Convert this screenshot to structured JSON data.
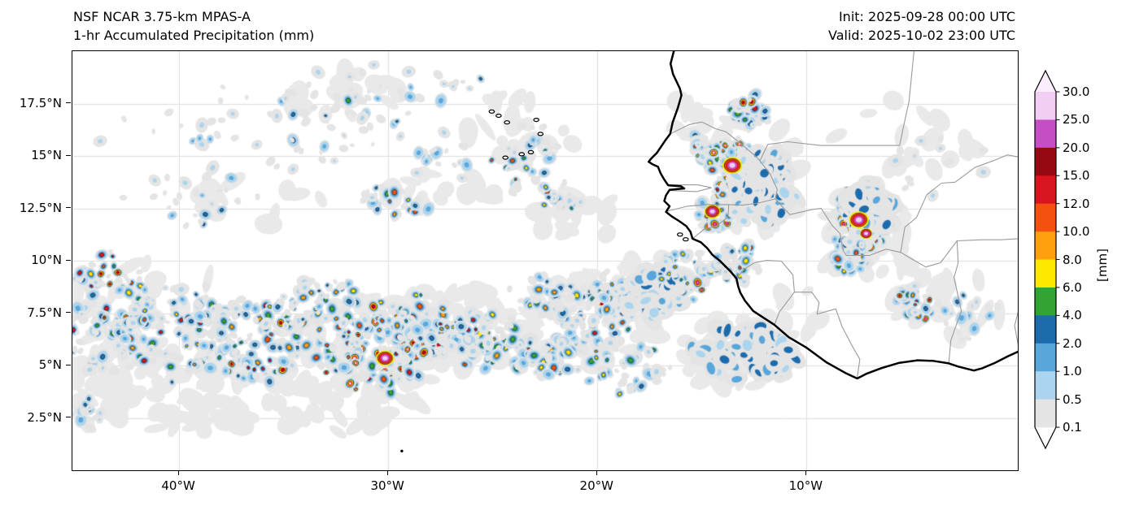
{
  "header": {
    "title_line1": "NSF NCAR 3.75-km MPAS-A",
    "title_line2": "1-hr Accumulated Precipitation (mm)",
    "init_label": "Init: 2025-09-28 00:00 UTC",
    "valid_label": "Valid: 2025-10-02 23:00 UTC"
  },
  "chart_data": {
    "type": "heatmap",
    "subtype": "precipitation-map",
    "title": "1-hr Accumulated Precipitation (mm)",
    "model": "NSF NCAR 3.75-km MPAS-A",
    "lon_range": [
      -45.1,
      0.1
    ],
    "lat_range": [
      0,
      20
    ],
    "grid": true,
    "grid_color": "#dedede",
    "coast_color": "#000000",
    "border_color": "#9a9a9a",
    "wash_color": "#e9e9e9",
    "seed": 20251002,
    "x_ticks": [
      {
        "lon": -40,
        "label": "40°W"
      },
      {
        "lon": -30,
        "label": "30°W"
      },
      {
        "lon": -20,
        "label": "20°W"
      },
      {
        "lon": -10,
        "label": "10°W"
      }
    ],
    "y_ticks": [
      {
        "lat": 17.5,
        "label": "17.5°N"
      },
      {
        "lat": 15,
        "label": "15°N"
      },
      {
        "lat": 12.5,
        "label": "12.5°N"
      },
      {
        "lat": 10,
        "label": "10°N"
      },
      {
        "lat": 7.5,
        "label": "7.5°N"
      },
      {
        "lat": 5,
        "label": "5°N"
      },
      {
        "lat": 2.5,
        "label": "2.5°N"
      }
    ],
    "colorbar": {
      "units_label": "[mm]",
      "orientation": "vertical",
      "position": "right",
      "levels": [
        0.1,
        0.5,
        1.0,
        2.0,
        4.0,
        6.0,
        8.0,
        10.0,
        12.0,
        15.0,
        20.0,
        25.0,
        30.0
      ],
      "tick_labels": [
        "30.0",
        "25.0",
        "20.0",
        "15.0",
        "12.0",
        "10.0",
        "8.0",
        "6.0",
        "4.0",
        "2.0",
        "1.0",
        "0.5",
        "0.1"
      ],
      "band_colors": [
        "#e4e4e4",
        "#abd4ee",
        "#58a6da",
        "#1c6bad",
        "#33a433",
        "#ffe800",
        "#ffa10e",
        "#f4500e",
        "#d8141e",
        "#960812",
        "#c44fc4",
        "#f2cdf4"
      ],
      "under_color": "#ffffff",
      "over_color": "#fbeefc"
    },
    "cell_format": [
      "lon",
      "lat",
      "rx_deg",
      "ry_deg",
      "count",
      "max_mm",
      "bias",
      "style"
    ],
    "precip_cells": [
      [
        -36.5,
        16.2,
        6.5,
        2.6,
        55,
        2.0,
        2.5,
        ""
      ],
      [
        -31.5,
        17.6,
        3.5,
        1.6,
        30,
        4.0,
        2.2,
        ""
      ],
      [
        -39.0,
        12.9,
        3.2,
        1.4,
        25,
        2.0,
        2.5,
        ""
      ],
      [
        -27.0,
        15.0,
        1.6,
        1.2,
        18,
        1.0,
        2.0,
        ""
      ],
      [
        -23.3,
        14.6,
        1.5,
        1.7,
        42,
        10.0,
        2.0,
        ""
      ],
      [
        -21.6,
        13.1,
        1.0,
        0.8,
        20,
        8.0,
        2.0,
        ""
      ],
      [
        -29.8,
        12.8,
        1.7,
        0.8,
        30,
        12.0,
        2.2,
        ""
      ],
      [
        -43.6,
        7.4,
        2.2,
        2.9,
        130,
        15.0,
        2.4,
        ""
      ],
      [
        -40.3,
        6.6,
        2.6,
        2.1,
        115,
        12.0,
        2.4,
        ""
      ],
      [
        -36.4,
        6.3,
        2.6,
        1.8,
        125,
        15.0,
        2.3,
        ""
      ],
      [
        -33.3,
        8.1,
        2.0,
        1.1,
        55,
        8.0,
        2.3,
        ""
      ],
      [
        -30.6,
        5.9,
        2.7,
        1.9,
        200,
        30.0,
        2.6,
        ""
      ],
      [
        -28.2,
        7.3,
        1.6,
        1.1,
        55,
        10.0,
        2.3,
        ""
      ],
      [
        -25.6,
        6.3,
        2.2,
        1.3,
        85,
        12.0,
        2.3,
        ""
      ],
      [
        -22.3,
        5.4,
        1.6,
        1.0,
        45,
        12.0,
        2.3,
        ""
      ],
      [
        -20.3,
        7.2,
        2.3,
        1.7,
        95,
        15.0,
        2.4,
        ""
      ],
      [
        -19.3,
        8.6,
        0.9,
        0.9,
        30,
        12.0,
        2.2,
        ""
      ],
      [
        -17.3,
        8.4,
        1.4,
        1.1,
        55,
        8.0,
        1.8,
        "blue"
      ],
      [
        -15.7,
        9.4,
        1.3,
        1.1,
        60,
        20.0,
        2.2,
        ""
      ],
      [
        -15.2,
        15.3,
        0.7,
        0.6,
        18,
        10.0,
        2.0,
        ""
      ],
      [
        -12.7,
        17.1,
        1.0,
        0.8,
        38,
        20.0,
        2.0,
        ""
      ],
      [
        -13.5,
        14.6,
        1.1,
        1.3,
        75,
        30.0,
        2.3,
        ""
      ],
      [
        -12.1,
        13.5,
        1.4,
        1.7,
        80,
        4.0,
        1.6,
        "blue"
      ],
      [
        -14.45,
        12.35,
        0.9,
        1.0,
        48,
        25.0,
        2.2,
        ""
      ],
      [
        -13.3,
        9.9,
        1.1,
        0.9,
        55,
        20.0,
        2.2,
        ""
      ],
      [
        -7.35,
        11.9,
        1.4,
        1.6,
        130,
        30.0,
        2.4,
        ""
      ],
      [
        -6.9,
        12.5,
        1.2,
        1.1,
        55,
        4.0,
        1.6,
        "blue"
      ],
      [
        -7.9,
        10.2,
        1.0,
        0.8,
        40,
        15.0,
        2.2,
        ""
      ],
      [
        -5.0,
        8.0,
        0.95,
        0.9,
        48,
        20.0,
        2.3,
        ""
      ],
      [
        -12.8,
        5.6,
        2.5,
        1.2,
        70,
        8.0,
        2.0,
        "blue"
      ],
      [
        -2.6,
        7.6,
        1.5,
        1.4,
        18,
        2.0,
        2.2,
        ""
      ],
      [
        -4.0,
        14.5,
        2.6,
        1.6,
        14,
        0.5,
        2.0,
        ""
      ],
      [
        -28.0,
        18.6,
        2.2,
        1.0,
        14,
        2.0,
        2.2,
        ""
      ],
      [
        -18.5,
        5.0,
        2.0,
        1.2,
        40,
        6.0,
        2.2,
        ""
      ],
      [
        -22.5,
        8.3,
        1.6,
        1.0,
        30,
        8.0,
        2.4,
        ""
      ],
      [
        -44.3,
        2.6,
        1.2,
        0.8,
        18,
        2.0,
        2.2,
        ""
      ]
    ],
    "core_format": [
      "lon",
      "lat",
      "radius_px"
    ],
    "storm_cores": [
      [
        -30.15,
        5.35,
        5.0
      ],
      [
        -13.55,
        14.55,
        5.5
      ],
      [
        -14.5,
        12.35,
        4.5
      ],
      [
        -7.5,
        11.95,
        5.5
      ],
      [
        -7.15,
        11.3,
        3.5
      ]
    ],
    "wash_format": [
      "lon",
      "lat",
      "rx_deg",
      "ry_deg",
      "count"
    ],
    "gray_washes": [
      [
        -36.5,
        3.6,
        8.5,
        2.1,
        90
      ],
      [
        -30.5,
        5.6,
        4.6,
        2.6,
        60
      ],
      [
        -41.5,
        7.5,
        3.8,
        2.6,
        45
      ],
      [
        -44.0,
        4.2,
        2.6,
        2.2,
        30
      ],
      [
        -26.3,
        7.0,
        3.4,
        2.0,
        40
      ],
      [
        -20.2,
        7.2,
        3.2,
        2.2,
        40
      ],
      [
        -13.4,
        5.6,
        3.0,
        1.7,
        30
      ],
      [
        -27.5,
        13.2,
        2.6,
        1.2,
        18
      ],
      [
        -23.6,
        16.2,
        2.6,
        1.9,
        22
      ],
      [
        -31.8,
        17.6,
        3.0,
        1.4,
        16
      ],
      [
        -12.6,
        14.2,
        2.3,
        2.9,
        30
      ],
      [
        -7.2,
        11.6,
        2.4,
        2.4,
        28
      ],
      [
        -5.2,
        16.0,
        3.4,
        1.8,
        18
      ],
      [
        -2.6,
        7.7,
        1.9,
        1.7,
        14
      ],
      [
        -36.2,
        12.9,
        3.0,
        1.4,
        12
      ],
      [
        -17.4,
        8.9,
        1.7,
        1.3,
        16
      ],
      [
        -15.9,
        16.9,
        1.4,
        1.0,
        10
      ],
      [
        -21.0,
        12.0,
        2.2,
        1.2,
        12
      ],
      [
        -4.7,
        8.6,
        1.6,
        1.6,
        12
      ],
      [
        -10.6,
        7.5,
        1.6,
        1.2,
        10
      ]
    ]
  },
  "map": {
    "coastline": [
      [
        -16.32,
        20.1
      ],
      [
        -16.5,
        19.4
      ],
      [
        -16.38,
        18.9
      ],
      [
        -16.05,
        18.2
      ],
      [
        -15.98,
        17.9
      ],
      [
        -16.15,
        17.3
      ],
      [
        -16.4,
        16.6
      ],
      [
        -16.52,
        16.05
      ],
      [
        -16.78,
        15.7
      ],
      [
        -17.15,
        15.15
      ],
      [
        -17.45,
        14.85
      ],
      [
        -17.55,
        14.72
      ],
      [
        -17.36,
        14.6
      ],
      [
        -17.1,
        14.48
      ],
      [
        -16.98,
        14.18
      ],
      [
        -16.82,
        13.9
      ],
      [
        -16.62,
        13.6
      ],
      [
        -16.0,
        13.55
      ],
      [
        -15.85,
        13.45
      ],
      [
        -16.55,
        13.38
      ],
      [
        -16.72,
        13.12
      ],
      [
        -16.8,
        12.85
      ],
      [
        -16.55,
        12.6
      ],
      [
        -16.72,
        12.33
      ],
      [
        -16.45,
        12.12
      ],
      [
        -16.1,
        11.9
      ],
      [
        -15.75,
        11.65
      ],
      [
        -15.55,
        11.38
      ],
      [
        -15.45,
        11.05
      ],
      [
        -15.05,
        10.88
      ],
      [
        -14.75,
        10.6
      ],
      [
        -14.5,
        10.28
      ],
      [
        -14.15,
        10.0
      ],
      [
        -13.8,
        9.65
      ],
      [
        -13.6,
        9.45
      ],
      [
        -13.35,
        9.15
      ],
      [
        -13.27,
        8.78
      ],
      [
        -13.17,
        8.48
      ],
      [
        -12.95,
        8.1
      ],
      [
        -12.55,
        7.6
      ],
      [
        -11.55,
        6.95
      ],
      [
        -10.85,
        6.35
      ],
      [
        -10.0,
        5.85
      ],
      [
        -9.05,
        5.15
      ],
      [
        -8.1,
        4.62
      ],
      [
        -7.58,
        4.38
      ],
      [
        -7.1,
        4.62
      ],
      [
        -6.4,
        4.88
      ],
      [
        -5.6,
        5.12
      ],
      [
        -4.7,
        5.25
      ],
      [
        -3.95,
        5.22
      ],
      [
        -3.2,
        5.1
      ],
      [
        -2.75,
        4.95
      ],
      [
        -2.0,
        4.76
      ],
      [
        -1.62,
        4.86
      ],
      [
        -1.0,
        5.12
      ],
      [
        -0.35,
        5.45
      ],
      [
        0.15,
        5.68
      ]
    ],
    "borders": [
      [
        [
          -16.52,
          16.05
        ],
        [
          -15.6,
          16.5
        ],
        [
          -15.0,
          16.62
        ],
        [
          -14.35,
          16.3
        ],
        [
          -13.85,
          16.15
        ],
        [
          -13.1,
          15.55
        ],
        [
          -12.45,
          15.0
        ],
        [
          -12.23,
          14.77
        ]
      ],
      [
        [
          -12.23,
          14.77
        ],
        [
          -11.75,
          14.15
        ],
        [
          -11.4,
          13.4
        ],
        [
          -11.5,
          12.95
        ]
      ],
      [
        [
          -11.5,
          12.95
        ],
        [
          -12.3,
          12.75
        ],
        [
          -13.05,
          12.65
        ],
        [
          -13.72,
          12.68
        ],
        [
          -14.8,
          12.68
        ],
        [
          -15.7,
          12.6
        ],
        [
          -16.72,
          12.35
        ]
      ],
      [
        [
          -13.72,
          12.68
        ],
        [
          -13.75,
          12.1
        ],
        [
          -14.3,
          11.65
        ],
        [
          -14.9,
          11.5
        ],
        [
          -15.45,
          11.05
        ]
      ],
      [
        [
          -12.23,
          14.77
        ],
        [
          -11.85,
          15.55
        ],
        [
          -10.9,
          15.68
        ],
        [
          -9.35,
          15.5
        ],
        [
          -5.55,
          15.5
        ],
        [
          -5.38,
          16.32
        ],
        [
          -5.1,
          17.6
        ],
        [
          -4.85,
          20.1
        ]
      ],
      [
        [
          -13.35,
          9.15
        ],
        [
          -12.95,
          9.62
        ],
        [
          -12.5,
          9.9
        ],
        [
          -11.9,
          10.02
        ],
        [
          -11.2,
          9.98
        ],
        [
          -10.65,
          9.32
        ],
        [
          -10.58,
          8.5
        ],
        [
          -11.3,
          7.55
        ],
        [
          -11.52,
          6.98
        ]
      ],
      [
        [
          -10.58,
          8.5
        ],
        [
          -9.75,
          8.5
        ],
        [
          -9.4,
          8.0
        ],
        [
          -9.5,
          7.45
        ],
        [
          -8.6,
          7.7
        ],
        [
          -8.3,
          6.85
        ],
        [
          -7.8,
          5.9
        ],
        [
          -7.45,
          5.3
        ],
        [
          -7.58,
          4.42
        ]
      ],
      [
        [
          -11.5,
          12.95
        ],
        [
          -10.8,
          12.2
        ],
        [
          -9.7,
          12.45
        ],
        [
          -9.3,
          12.5
        ],
        [
          -8.75,
          11.65
        ],
        [
          -8.4,
          11.3
        ],
        [
          -8.25,
          10.5
        ],
        [
          -8.1,
          10.25
        ],
        [
          -7.0,
          10.25
        ],
        [
          -6.2,
          10.55
        ],
        [
          -5.5,
          10.4
        ],
        [
          -5.0,
          10.1
        ],
        [
          -4.3,
          9.7
        ],
        [
          -3.6,
          9.9
        ],
        [
          -2.8,
          10.95
        ]
      ],
      [
        [
          -2.8,
          10.95
        ],
        [
          -1.6,
          11.0
        ],
        [
          -0.7,
          11.0
        ],
        [
          0.15,
          11.05
        ]
      ],
      [
        [
          -5.5,
          10.4
        ],
        [
          -5.3,
          11.6
        ],
        [
          -4.75,
          12.05
        ],
        [
          -4.45,
          12.7
        ],
        [
          -4.25,
          13.15
        ],
        [
          -3.55,
          13.7
        ],
        [
          -2.9,
          13.75
        ],
        [
          -1.95,
          14.45
        ],
        [
          -1.0,
          14.8
        ],
        [
          -0.4,
          15.05
        ],
        [
          0.15,
          14.95
        ]
      ],
      [
        [
          -3.2,
          5.1
        ],
        [
          -3.1,
          6.2
        ],
        [
          -2.6,
          7.6
        ],
        [
          -2.95,
          9.2
        ],
        [
          -2.75,
          9.9
        ],
        [
          -2.8,
          10.95
        ]
      ],
      [
        [
          -16.62,
          13.62
        ],
        [
          -15.2,
          13.62
        ],
        [
          -14.55,
          13.48
        ],
        [
          -15.25,
          13.3
        ],
        [
          -16.55,
          13.35
        ]
      ],
      [
        [
          0.15,
          5.8
        ],
        [
          -0.05,
          6.9
        ],
        [
          0.2,
          7.9
        ]
      ]
    ],
    "islands": [
      [
        -25.05,
        17.12
      ],
      [
        -24.72,
        16.92
      ],
      [
        -24.32,
        16.6
      ],
      [
        -22.92,
        16.72
      ],
      [
        -22.72,
        16.05
      ],
      [
        -23.62,
        15.08
      ],
      [
        -24.4,
        14.92
      ],
      [
        -23.18,
        15.18
      ],
      [
        -16.05,
        11.25
      ],
      [
        -15.78,
        11.02
      ]
    ],
    "rock": [
      -29.35,
      0.92
    ]
  }
}
